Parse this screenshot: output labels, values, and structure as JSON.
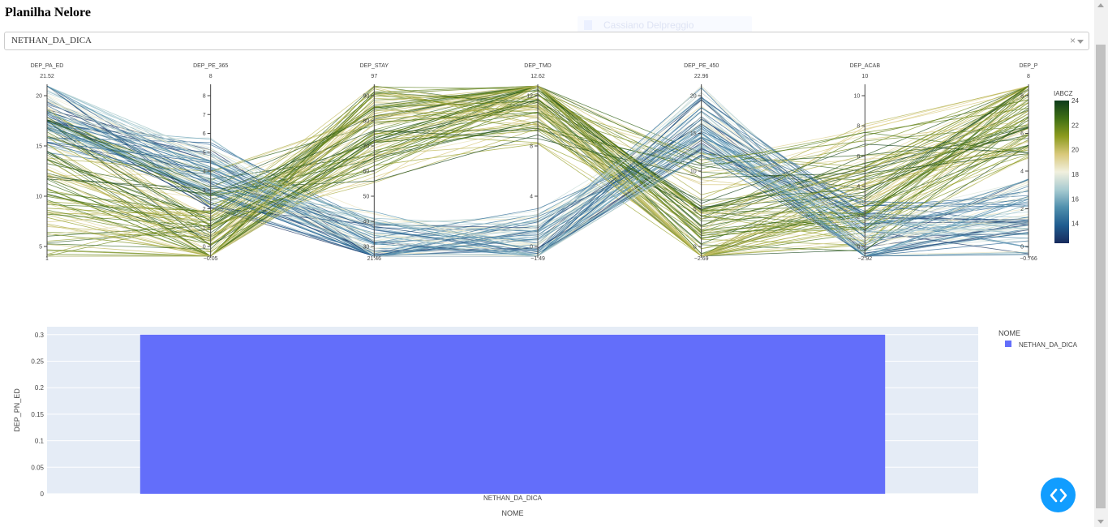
{
  "page": {
    "title": "Planilha Nelore"
  },
  "dropdown": {
    "value": "NETHAN_DA_DICA",
    "clear": "×"
  },
  "ghost_button": {
    "label": "Cassiano Delpreggio"
  },
  "colors": {
    "bar": "#636efa",
    "plot_bg": "#e5ecf6",
    "nav_button": "#119dff",
    "colorscale": [
      "#172a5c",
      "#1f5c8f",
      "#4f8fad",
      "#a8cbd1",
      "#f1f0de",
      "#d8c87a",
      "#8c9b1e",
      "#3f6f14",
      "#0d3b1a"
    ]
  },
  "icons": {
    "nav": "code-brackets-icon",
    "clear": "clear-icon",
    "caret": "caret-down-icon"
  },
  "chart_data": [
    {
      "type": "parcoords",
      "axes": [
        {
          "name": "DEP_PA_ED",
          "max_label": "21.52",
          "min_label": "1",
          "ticks": [
            "5",
            "10",
            "15",
            "20"
          ]
        },
        {
          "name": "DEP_PE_365",
          "max_label": "8",
          "min_label": "−0.05",
          "ticks": [
            "0",
            "1",
            "2",
            "3",
            "4",
            "5",
            "6",
            "7",
            "8"
          ]
        },
        {
          "name": "DEP_STAY",
          "max_label": "97",
          "min_label": "21.46",
          "ticks": [
            "30",
            "40",
            "50",
            "60",
            "70",
            "80",
            "90"
          ]
        },
        {
          "name": "DEP_TMD",
          "max_label": "12.62",
          "min_label": "−1.49",
          "ticks": [
            "0",
            "4",
            "8",
            "12"
          ]
        },
        {
          "name": "DEP_PE_450",
          "max_label": "22.96",
          "min_label": "−2.69",
          "ticks": [
            "0",
            "5",
            "10",
            "15",
            "20"
          ]
        },
        {
          "name": "DEP_ACAB",
          "max_label": "10",
          "min_label": "−2.92",
          "ticks": [
            "0",
            "2",
            "4",
            "6",
            "8",
            "10"
          ]
        },
        {
          "name": "DEP_P",
          "max_label": "8",
          "min_label": "−0.766",
          "ticks": [
            "0",
            "2",
            "4",
            "6",
            "8"
          ]
        }
      ],
      "colorbar": {
        "title": "IABCZ",
        "ticks": [
          "14",
          "16",
          "18",
          "20",
          "22",
          "24"
        ],
        "range": [
          12.4,
          24
        ]
      },
      "line_count": 180
    },
    {
      "type": "bar",
      "categories": [
        "NETHAN_DA_DICA"
      ],
      "series": [
        {
          "name": "NETHAN_DA_DICA",
          "values": [
            0.3
          ]
        }
      ],
      "xlabel": "NOME",
      "ylabel": "DEP_PN_ED",
      "ylim": [
        0,
        0.315
      ],
      "yticks": [
        {
          "value": 0,
          "label": "0"
        },
        {
          "value": 0.05,
          "label": "0.05"
        },
        {
          "value": 0.1,
          "label": "0.1"
        },
        {
          "value": 0.15,
          "label": "0.15"
        },
        {
          "value": 0.2,
          "label": "0.2"
        },
        {
          "value": 0.25,
          "label": "0.25"
        },
        {
          "value": 0.3,
          "label": "0.3"
        }
      ],
      "legend_title": "NOME",
      "legend_position": "right",
      "grid": true
    }
  ]
}
